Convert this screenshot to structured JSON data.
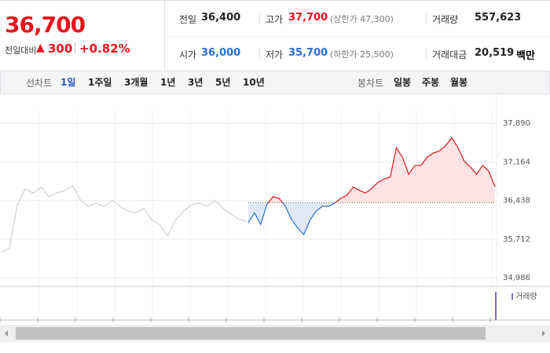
{
  "quote": {
    "price": "36,700",
    "change_label": "전일대비",
    "change": "300",
    "change_pct": "+0.82%",
    "stats": [
      {
        "label": "전일",
        "value": "36,400",
        "color": "#222"
      },
      {
        "label": "고가",
        "value": "37,700",
        "note": "(상한가 47,300)",
        "color": "#e8141e"
      },
      {
        "label": "거래량",
        "value": "557,623",
        "color": "#222"
      },
      {
        "label": "시가",
        "value": "36,000",
        "color": "#2a6fd1"
      },
      {
        "label": "저가",
        "value": "35,700",
        "note": "(하한가 25,500)",
        "color": "#2a6fd1"
      },
      {
        "label": "거래대금",
        "value": "20,519",
        "unit": "백만",
        "color": "#222"
      }
    ]
  },
  "tabs": {
    "line_label": "선차트",
    "line": [
      "1일",
      "1주일",
      "3개월",
      "1년",
      "3년",
      "5년",
      "10년"
    ],
    "selected": 0,
    "candle_label": "봉차트",
    "candle": [
      "일봉",
      "주봉",
      "월봉"
    ]
  },
  "chart_data": {
    "type": "line",
    "ylim": [
      34900,
      38100
    ],
    "yticks": [
      {
        "value": 34986,
        "label": "34,986"
      },
      {
        "value": 35712,
        "label": "35,712"
      },
      {
        "value": 36438,
        "label": "36,438"
      },
      {
        "value": 37164,
        "label": "37,164"
      },
      {
        "value": 37890,
        "label": "37,890"
      }
    ],
    "baseline": 36400,
    "up_color": "#e8141e",
    "down_color": "#2a6fd1",
    "series": [
      {
        "color": "#c8c8c8",
        "values": [
          35470,
          35550,
          36360,
          36660,
          36580,
          36690,
          36510,
          36580,
          36630,
          36720,
          36440,
          36330,
          36390,
          36330,
          36440,
          36330,
          36240,
          36210,
          36290,
          36070,
          35990,
          35770,
          36070,
          36240,
          36360,
          36390,
          36330,
          36440,
          36290,
          36180,
          36090,
          36040
        ]
      },
      {
        "values": [
          36020,
          36210,
          35990,
          36360,
          36510,
          36480,
          36330,
          36090,
          35920,
          35800,
          36070,
          36240,
          36330,
          36330,
          36390,
          36480,
          36540,
          36690,
          36630,
          36580,
          36660,
          36780,
          36840,
          36880,
          37430,
          37250,
          36930,
          37100,
          37100,
          37250,
          37330,
          37370,
          37470,
          37620,
          37430,
          37180,
          37070,
          36930,
          37100,
          36990,
          36700
        ]
      }
    ],
    "volume_label": "거래량"
  }
}
